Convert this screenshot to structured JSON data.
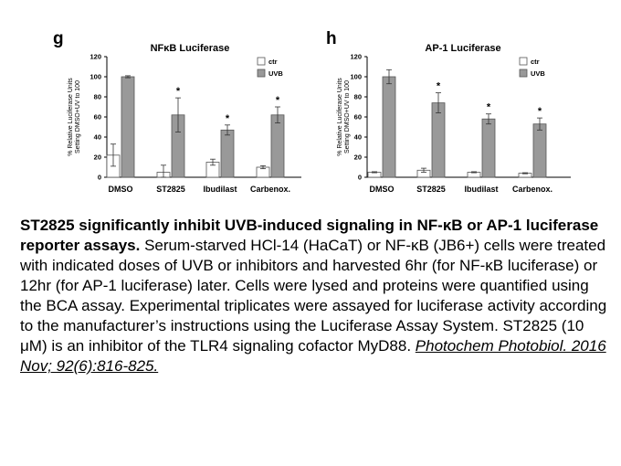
{
  "chart_data": [
    {
      "type": "bar",
      "panel": "g",
      "title": "NFκB Luciferase",
      "ylabel": "% Relative Luciferase Units Setting DMSO+UV to 100",
      "categories": [
        "DMSO",
        "ST2825",
        "Ibudilast",
        "Carbenox."
      ],
      "ylim": [
        0,
        120
      ],
      "yticks": [
        "0",
        "20",
        "40",
        "60",
        "80",
        "100",
        "120"
      ],
      "series": [
        {
          "name": "ctr",
          "color": "#ffffff",
          "values": [
            22,
            5,
            15,
            10
          ],
          "errors": [
            11,
            7,
            3,
            1.5
          ]
        },
        {
          "name": "UVB",
          "color": "#999999",
          "values": [
            100,
            62,
            47,
            62
          ],
          "errors": [
            1,
            17,
            5,
            8
          ]
        }
      ],
      "annotations": [
        {
          "category": "ST2825",
          "text": "*"
        },
        {
          "category": "Ibudilast",
          "text": "*"
        },
        {
          "category": "Carbenox.",
          "text": "*"
        }
      ],
      "legend": "top-right",
      "grid": false
    },
    {
      "type": "bar",
      "panel": "h",
      "title": "AP-1 Luciferase",
      "ylabel": "% Relative Luciferase Units Setting DMSO+UV to 100",
      "categories": [
        "DMSO",
        "ST2825",
        "Ibudilast",
        "Carbenox."
      ],
      "ylim": [
        0,
        120
      ],
      "yticks": [
        "0",
        "20",
        "40",
        "60",
        "80",
        "100",
        "120"
      ],
      "series": [
        {
          "name": "ctr",
          "color": "#ffffff",
          "values": [
            5,
            7,
            5,
            4
          ],
          "errors": [
            0.5,
            2,
            0.5,
            0.5
          ]
        },
        {
          "name": "UVB",
          "color": "#999999",
          "values": [
            100,
            74,
            58,
            53
          ],
          "errors": [
            7,
            10,
            5,
            6
          ]
        }
      ],
      "annotations": [
        {
          "category": "ST2825",
          "text": "*"
        },
        {
          "category": "Ibudilast",
          "text": "*"
        },
        {
          "category": "Carbenox.",
          "text": "*"
        }
      ],
      "legend": "top-right",
      "grid": false
    }
  ],
  "caption": {
    "bold": "ST2825 significantly inhibit UVB-induced signaling in NF-κB or AP-1 luciferase reporter assays.",
    "body": " Serum-starved HCl-14 (HaCaT) or NF-κB (JB6+) cells were treated with indicated doses of UVB or inhibitors and harvested 6hr (for NF-κB luciferase) or 12hr (for AP-1 luciferase) later. Cells were lysed and proteins were quantified using the BCA assay. Experimental triplicates were assayed for luciferase activity according to the manufacturer’s instructions using the Luciferase Assay System. ST2825 (10 μM) is an inhibitor of the TLR4 signaling cofactor MyD88. ",
    "citation": "Photochem Photobiol. 2016 Nov; 92(6):816-825."
  }
}
